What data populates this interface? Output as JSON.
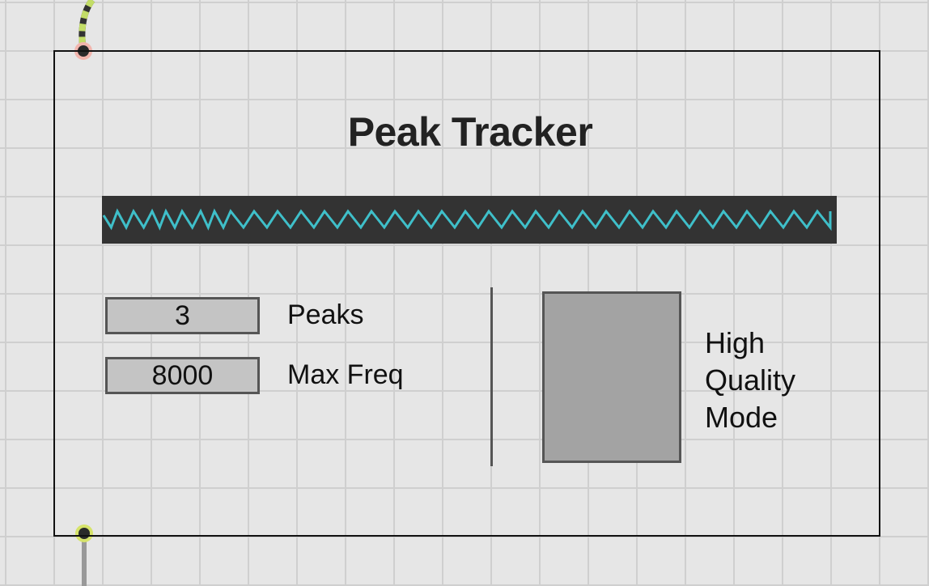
{
  "window": {
    "title": "Peak Tracker"
  },
  "controls": {
    "peaks": {
      "value": "3",
      "label": "Peaks"
    },
    "max_freq": {
      "value": "8000",
      "label": "Max Freq"
    },
    "high_quality": {
      "label_lines": [
        "High",
        "Quality",
        "Mode"
      ],
      "state": "off"
    }
  },
  "icons": {
    "scope": "waveform-scope-icon",
    "inlet": "inlet-port-icon",
    "outlet": "outlet-port-icon"
  },
  "colors": {
    "background": "#e6e6e6",
    "grid": "#cfcfcf",
    "panel_border": "#111111",
    "scope_background": "#333333",
    "waveform": "#3fbfc9",
    "numbox_fill": "#c4c4c4",
    "toggle_fill": "#a3a3a3",
    "control_border": "#555555",
    "cord_signal": "#c3dd67",
    "cord_control": "#999999"
  }
}
